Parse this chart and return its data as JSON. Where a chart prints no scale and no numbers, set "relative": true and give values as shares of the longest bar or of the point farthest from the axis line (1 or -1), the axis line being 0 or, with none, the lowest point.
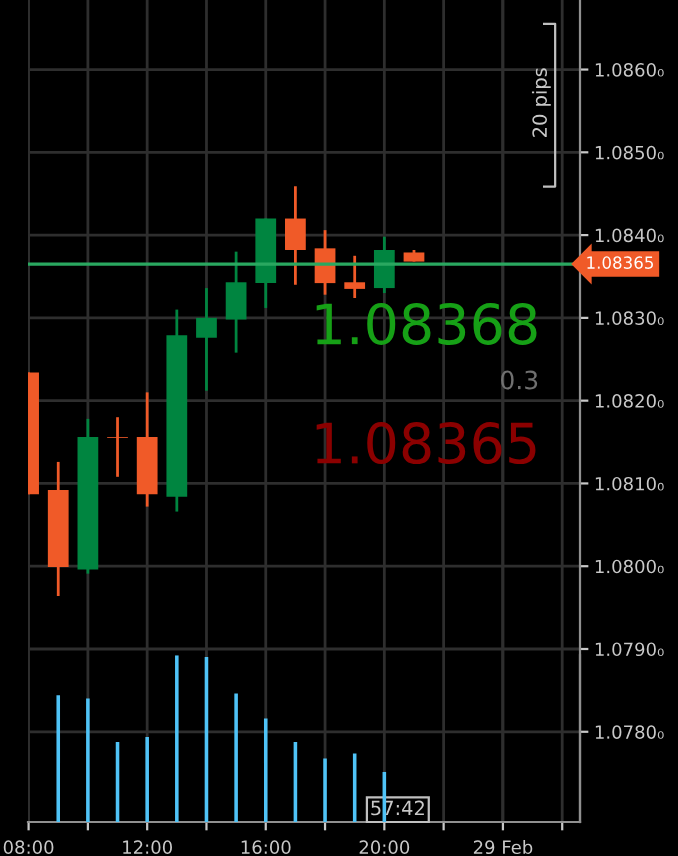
{
  "chart_data": [
    {
      "type": "candlestick",
      "x": [
        8,
        9,
        10,
        11,
        12,
        13,
        14,
        15,
        16,
        17,
        18,
        19,
        20,
        21
      ],
      "ohlc": [
        [
          1.08234,
          1.08234,
          1.08087,
          1.08087
        ],
        [
          1.08092,
          1.08126,
          1.07964,
          1.07999
        ],
        [
          1.07996,
          1.08178,
          1.07991,
          1.08156
        ],
        [
          1.08156,
          1.0818,
          1.08108,
          1.08155
        ],
        [
          1.08156,
          1.0821,
          1.08072,
          1.08087
        ],
        [
          1.08084,
          1.0831,
          1.08066,
          1.08279
        ],
        [
          1.08276,
          1.08336,
          1.08212,
          1.083
        ],
        [
          1.08298,
          1.0838,
          1.08258,
          1.08343
        ],
        [
          1.08342,
          1.0842,
          1.08312,
          1.0842
        ],
        [
          1.0842,
          1.08459,
          1.0834,
          1.08382
        ],
        [
          1.08384,
          1.08406,
          1.08328,
          1.08342
        ],
        [
          1.08343,
          1.08375,
          1.08324,
          1.08335
        ],
        [
          1.08336,
          1.08398,
          1.0833,
          1.08382
        ],
        [
          1.08379,
          1.08382,
          1.08368,
          1.08368
        ]
      ],
      "colors": [
        "#f05a28",
        "#f05a28",
        "#008540",
        "#f05a28",
        "#f05a28",
        "#008540",
        "#008540",
        "#008540",
        "#008540",
        "#f05a28",
        "#f05a28",
        "#f05a28",
        "#008540",
        "#f05a28"
      ],
      "xlim": [
        7.98,
        26.6
      ],
      "xticks": [
        {
          "value": 8,
          "label": "08:00"
        },
        {
          "value": 10,
          "label": null
        },
        {
          "value": 12,
          "label": "12:00"
        },
        {
          "value": 14,
          "label": null
        },
        {
          "value": 16,
          "label": "16:00"
        },
        {
          "value": 18,
          "label": null
        },
        {
          "value": 20,
          "label": "20:00"
        },
        {
          "value": 22,
          "label": null
        },
        {
          "value": 24,
          "label": "29 Feb"
        },
        {
          "value": 26,
          "label": null
        }
      ],
      "ylim": [
        1.07691,
        1.08684
      ],
      "yticks": [
        {
          "value": 1.078,
          "label": "1.0780₀"
        },
        {
          "value": 1.079,
          "label": "1.0790₀"
        },
        {
          "value": 1.08,
          "label": "1.0800₀"
        },
        {
          "value": 1.081,
          "label": "1.0810₀"
        },
        {
          "value": 1.082,
          "label": "1.0820₀"
        },
        {
          "value": 1.083,
          "label": "1.0830₀"
        },
        {
          "value": 1.084,
          "label": "1.0840₀"
        },
        {
          "value": 1.085,
          "label": "1.0850₀"
        },
        {
          "value": 1.086,
          "label": "1.0860₀"
        }
      ],
      "grid": true,
      "ref_lines": [
        {
          "axis": "y",
          "value": 1.08365,
          "label": "1.08365",
          "color": "#2aa860"
        },
        {
          "axis": "x",
          "value": 24,
          "label": null,
          "color": "#b0b0b0"
        }
      ],
      "annotations": [
        "1.08368",
        "0.3",
        "1.08365",
        "20 pips",
        "57:42"
      ]
    },
    {
      "type": "bar",
      "x": [
        9,
        10,
        11,
        12,
        13,
        14,
        15,
        16,
        17,
        18,
        19,
        20
      ],
      "values": [
        0.76,
        0.74,
        0.48,
        0.51,
        1,
        0.99,
        0.77,
        0.62,
        0.48,
        0.38,
        0.41,
        0.3
      ],
      "color": "#4fc3f7",
      "relative": true,
      "xlim": [
        7.98,
        26.6
      ],
      "tick_labels": false
    }
  ]
}
